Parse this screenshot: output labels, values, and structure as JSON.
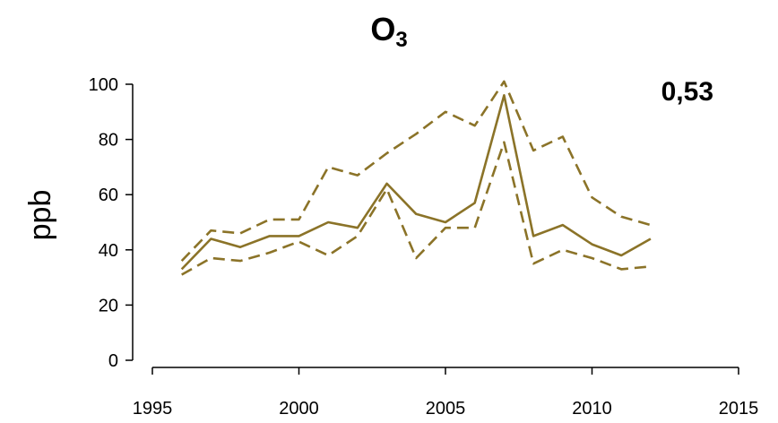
{
  "chart_data": {
    "type": "line",
    "title_main": "O",
    "title_sub": "3",
    "annotation": "0,53",
    "xlabel": "",
    "ylabel": "ppb",
    "xlim": [
      1995,
      2015
    ],
    "ylim": [
      0,
      100
    ],
    "x_ticks": [
      1995,
      2000,
      2005,
      2010,
      2015
    ],
    "y_ticks": [
      0,
      20,
      40,
      60,
      80,
      100
    ],
    "grid": false,
    "color": "#8b7328",
    "x": [
      1996,
      1997,
      1998,
      1999,
      2000,
      2001,
      2002,
      2003,
      2004,
      2005,
      2006,
      2007,
      2008,
      2009,
      2010,
      2011,
      2012
    ],
    "series": [
      {
        "style": "solid",
        "values": [
          33,
          44,
          41,
          45,
          45,
          50,
          48,
          64,
          53,
          50,
          57,
          96,
          45,
          49,
          42,
          38,
          44
        ]
      },
      {
        "style": "dashed",
        "values": [
          36,
          47,
          46,
          51,
          51,
          70,
          67,
          75,
          82,
          90,
          85,
          101,
          76,
          81,
          59,
          52,
          49
        ]
      },
      {
        "style": "dashed",
        "values": [
          31,
          37,
          36,
          39,
          43,
          38,
          45,
          62,
          37,
          48,
          48,
          79,
          35,
          40,
          37,
          33,
          34
        ]
      }
    ]
  }
}
